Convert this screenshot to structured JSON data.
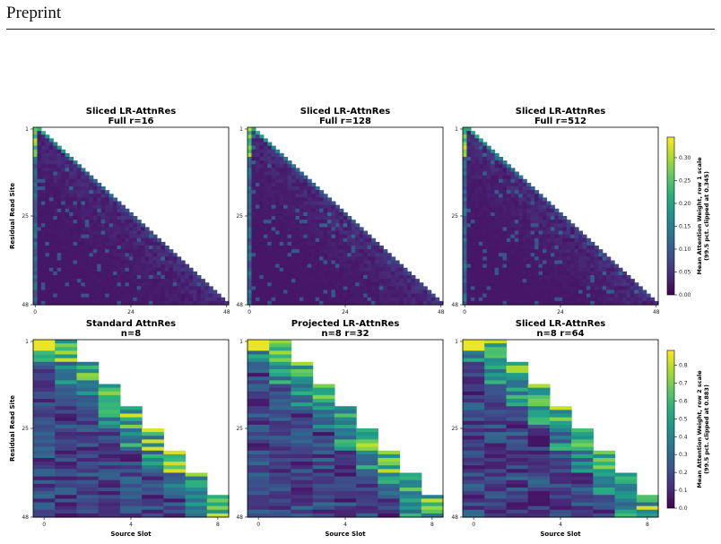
{
  "page": {
    "header": "Preprint"
  },
  "chart_data": [
    {
      "type": "heatmap",
      "title": "Sliced LR-AttnRes",
      "subtitle": "Full r=16",
      "ylabel": "Residual Read Site",
      "xlabel": "",
      "xticks": [
        "0",
        "24",
        "48"
      ],
      "yticks": [
        "1",
        "25",
        "48"
      ],
      "grid": false
    },
    {
      "type": "heatmap",
      "title": "Sliced LR-AttnRes",
      "subtitle": "Full r=128",
      "ylabel": "",
      "xlabel": "",
      "xticks": [
        "0",
        "24",
        "48"
      ],
      "yticks": [
        "1",
        "25",
        "48"
      ],
      "grid": false
    },
    {
      "type": "heatmap",
      "title": "Sliced LR-AttnRes",
      "subtitle": "Full r=512",
      "ylabel": "",
      "xlabel": "",
      "xticks": [
        "0",
        "24",
        "48"
      ],
      "yticks": [
        "1",
        "25",
        "48"
      ],
      "grid": false
    },
    {
      "type": "heatmap",
      "title": "Standard AttnRes",
      "subtitle": "n=8",
      "ylabel": "Residual Read Site",
      "xlabel": "Source Slot",
      "xticks": [
        "0",
        "4",
        "8"
      ],
      "yticks": [
        "1",
        "25",
        "48"
      ],
      "grid": false
    },
    {
      "type": "heatmap",
      "title": "Projected LR-AttnRes",
      "subtitle": "n=8 r=32",
      "ylabel": "",
      "xlabel": "Source Slot",
      "xticks": [
        "0",
        "4",
        "8"
      ],
      "yticks": [
        "1",
        "25",
        "48"
      ],
      "grid": false
    },
    {
      "type": "heatmap",
      "title": "Sliced LR-AttnRes",
      "subtitle": "n=8 r=64",
      "ylabel": "",
      "xlabel": "Source Slot",
      "xticks": [
        "0",
        "4",
        "8"
      ],
      "yticks": [
        "1",
        "25",
        "48"
      ],
      "grid": false
    }
  ],
  "colorbars": [
    {
      "label1": "Mean Attention Weight, row 1 scale",
      "label2": "(99.5 pct. clipped at 0.345)",
      "ticks": [
        "0.00",
        "0.05",
        "0.10",
        "0.15",
        "0.20",
        "0.25",
        "0.30"
      ],
      "range": [
        0,
        0.345
      ]
    },
    {
      "label1": "Mean Attention Weight, row 2 scale",
      "label2": "(99.5 pct. clipped at 0.883)",
      "ticks": [
        "0.0",
        "0.1",
        "0.2",
        "0.3",
        "0.4",
        "0.5",
        "0.6",
        "0.7",
        "0.8"
      ],
      "range": [
        0,
        0.883
      ]
    }
  ]
}
